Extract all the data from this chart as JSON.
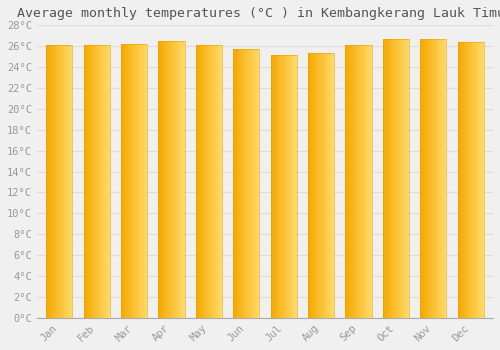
{
  "title": "Average monthly temperatures (°C ) in Kembangkerang Lauk Timur",
  "months": [
    "Jan",
    "Feb",
    "Mar",
    "Apr",
    "May",
    "Jun",
    "Jul",
    "Aug",
    "Sep",
    "Oct",
    "Nov",
    "Dec"
  ],
  "values": [
    26.1,
    26.1,
    26.2,
    26.5,
    26.1,
    25.7,
    25.2,
    25.3,
    26.1,
    26.7,
    26.7,
    26.4
  ],
  "bar_color_left": "#F5A800",
  "bar_color_right": "#FFD966",
  "background_color": "#f0f0f0",
  "grid_color": "#dddddd",
  "text_color": "#999999",
  "title_color": "#555555",
  "ylim": [
    0,
    28
  ],
  "ytick_step": 2,
  "title_fontsize": 9.5,
  "tick_fontsize": 7.5,
  "bar_width": 0.7
}
